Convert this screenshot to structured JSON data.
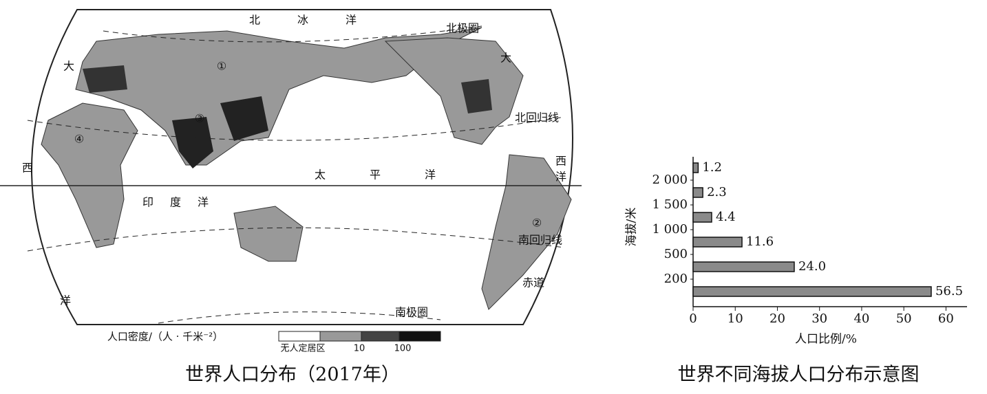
{
  "map": {
    "caption": "世界人口分布（2017年）",
    "labels": [
      "北",
      "冰",
      "洋",
      "北极圈",
      "大",
      "西",
      "洋",
      "太",
      "平",
      "洋",
      "印",
      "度",
      "洋",
      "大",
      "西",
      "洋",
      "赤道",
      "北回归线",
      "南回归线",
      "南极圈",
      "①",
      "②",
      "③",
      "④"
    ],
    "legend": {
      "title": "人口密度/（人 · 千米⁻²）",
      "items": [
        "无人定居区",
        "10",
        "100"
      ]
    }
  },
  "chart_data": {
    "type": "bar",
    "orientation": "horizontal",
    "title": "世界不同海拔人口分布示意图",
    "x_label": "人口比例/%",
    "y_label": "海拔/米",
    "categories": [
      null,
      null,
      null,
      null,
      null,
      null
    ],
    "values": [
      56.5,
      24.0,
      11.6,
      4.4,
      2.3,
      1.2
    ],
    "value_labels": [
      "56.5",
      "24.0",
      "11.6",
      "4.4",
      "2.3",
      "1.2"
    ],
    "color": "#8a8a8a",
    "category_bounds": [
      {
        "value": 200,
        "label": "200"
      },
      {
        "value": 500,
        "label": "500"
      },
      {
        "value": 1000,
        "label": "1 000"
      },
      {
        "value": 1500,
        "label": "1 500"
      },
      {
        "value": 2000,
        "label": "2 000"
      }
    ],
    "xlim": [
      0,
      65
    ],
    "xticks": [
      0,
      10,
      20,
      30,
      40,
      50,
      60
    ]
  }
}
